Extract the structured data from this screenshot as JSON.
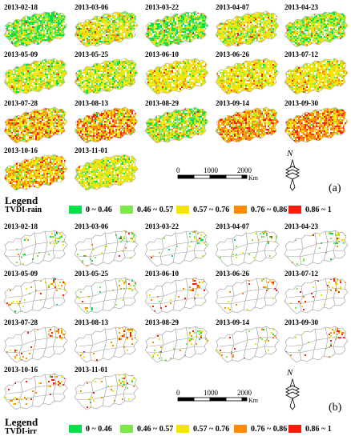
{
  "colors": {
    "c1": "#00e04a",
    "c2": "#7de84a",
    "c3": "#f2e600",
    "c4": "#ff8c00",
    "c5": "#ff1a10",
    "boundary": "#9a9a9a"
  },
  "panels": [
    {
      "id": "a",
      "letter": "(a)",
      "legend_word": "Legend",
      "legend_index": "TVDI-rain",
      "dates": [
        "2013-02-18",
        "2013-03-06",
        "2013-03-22",
        "2013-04-07",
        "2013-04-23",
        "2013-05-09",
        "2013-05-25",
        "2013-06-10",
        "2013-06-26",
        "2013-07-12",
        "2013-07-28",
        "2013-08-13",
        "2013-08-29",
        "2013-09-14",
        "2013-09-30",
        "2013-10-16",
        "2013-11-01"
      ],
      "scale_labels": [
        "0",
        "1000",
        "2000"
      ],
      "scale_unit": "Km"
    },
    {
      "id": "b",
      "letter": "(b)",
      "legend_word": "Legend",
      "legend_index": "TVDI-irr",
      "dates": [
        "2013-02-18",
        "2013-03-06",
        "2013-03-22",
        "2013-04-07",
        "2013-04-23",
        "2013-05-09",
        "2013-05-25",
        "2013-06-10",
        "2013-06-26",
        "2013-07-12",
        "2013-07-28",
        "2013-08-13",
        "2013-08-29",
        "2013-09-14",
        "2013-09-30",
        "2013-10-16",
        "2013-11-01"
      ],
      "scale_labels": [
        "0",
        "1000",
        "2000"
      ],
      "scale_unit": "Km"
    }
  ],
  "legend_items": [
    {
      "range": "0 ~ 0.46",
      "color": "#00e04a"
    },
    {
      "range": "0.46 ~ 0.57",
      "color": "#7de84a"
    },
    {
      "range": "0.57 ~ 0.76",
      "color": "#f2e600"
    },
    {
      "range": "0.76 ~ 0.86",
      "color": "#ff8c00"
    },
    {
      "range": "0.86 ~ 1",
      "color": "#ff1a10"
    }
  ],
  "compass_letter": "N"
}
